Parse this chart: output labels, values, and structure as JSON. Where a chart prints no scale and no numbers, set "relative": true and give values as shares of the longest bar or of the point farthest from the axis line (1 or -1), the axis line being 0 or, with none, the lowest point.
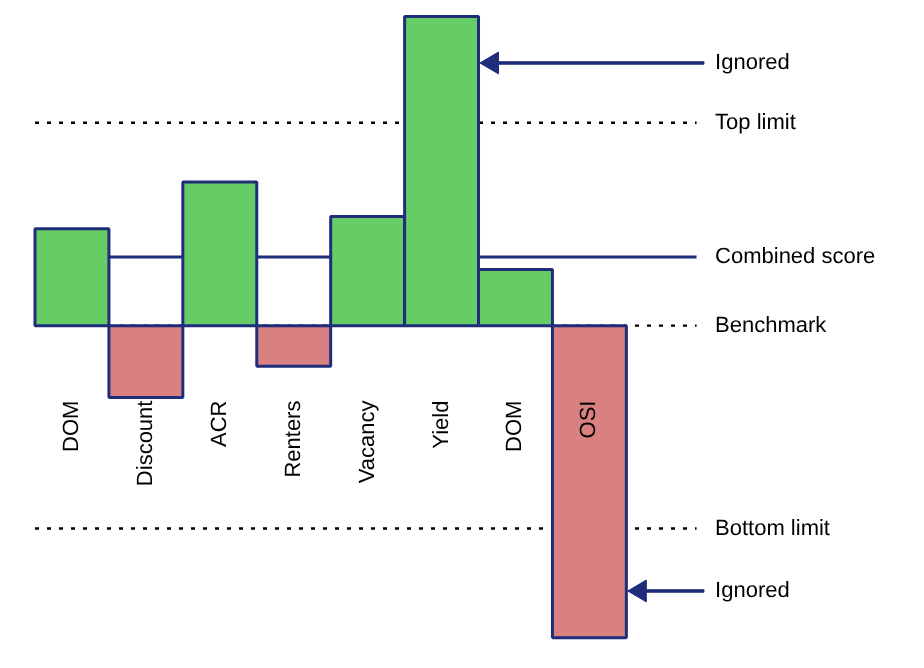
{
  "chart_data": {
    "type": "bar",
    "relative": true,
    "categories": [
      "DOM",
      "Discount",
      "ACR",
      "Renters",
      "Vacancy",
      "Yield",
      "DOM",
      "OSI"
    ],
    "values": [
      0.31,
      -0.23,
      0.46,
      -0.13,
      0.35,
      0.99,
      0.18,
      -1
    ],
    "colors": [
      "#66cc66",
      "#d98080",
      "#66cc66",
      "#d98080",
      "#66cc66",
      "#66cc66",
      "#66cc66",
      "#d98080"
    ],
    "ref_lines": [
      {
        "axis": "y",
        "value": 0.65,
        "label": "Top limit",
        "color": "#000000",
        "line_style": "dotted"
      },
      {
        "axis": "y",
        "value": 0.22,
        "label": "Combined score",
        "color": "#1f2d7b",
        "line_style": "solid"
      },
      {
        "axis": "y",
        "value": 0,
        "label": "Benchmark",
        "color": "#000000",
        "line_style": "dotted"
      },
      {
        "axis": "y",
        "value": -0.65,
        "label": "Bottom limit",
        "color": "#000000",
        "line_style": "dotted"
      }
    ],
    "annotations": [
      "Ignored",
      "Ignored"
    ]
  }
}
